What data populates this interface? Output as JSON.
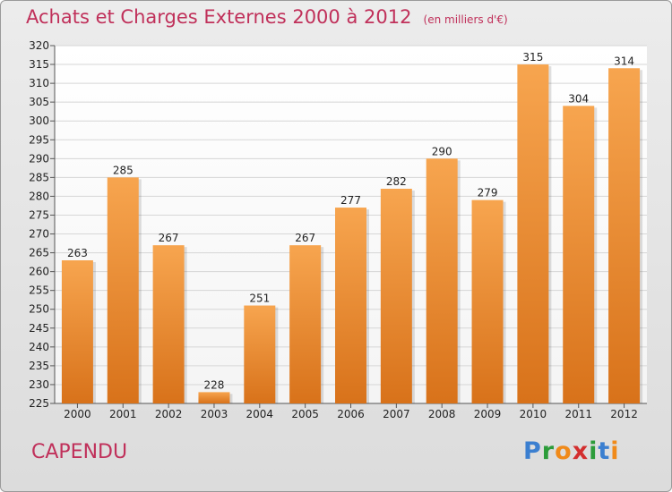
{
  "header": {
    "title": "Achats et Charges Externes 2000 à 2012",
    "unit": "(en milliers d'€)"
  },
  "footer": {
    "city": "CAPENDU",
    "brand_letters": [
      "P",
      "r",
      "o",
      "x",
      "i",
      "t",
      "i"
    ],
    "brand_colors": [
      "#3b7fd0",
      "#2c9c3a",
      "#f08a1a",
      "#d32f2f",
      "#2c9c3a",
      "#3b7fd0",
      "#f08a1a"
    ]
  },
  "chart_data": {
    "type": "bar",
    "title": "Achats et Charges Externes 2000 à 2012",
    "subtitle": "(en milliers d'€)",
    "categories": [
      "2000",
      "2001",
      "2002",
      "2003",
      "2004",
      "2005",
      "2006",
      "2007",
      "2008",
      "2009",
      "2010",
      "2011",
      "2012"
    ],
    "values": [
      263,
      285,
      267,
      228,
      251,
      267,
      277,
      282,
      290,
      279,
      315,
      304,
      314
    ],
    "ylim": [
      225,
      320
    ],
    "yticks": [
      225,
      230,
      235,
      240,
      245,
      250,
      255,
      260,
      265,
      270,
      275,
      280,
      285,
      290,
      295,
      300,
      305,
      310,
      315,
      320
    ],
    "grid": true,
    "bar_color_top": "#f7a54f",
    "bar_color_bottom": "#d8721a",
    "legend": "none"
  }
}
